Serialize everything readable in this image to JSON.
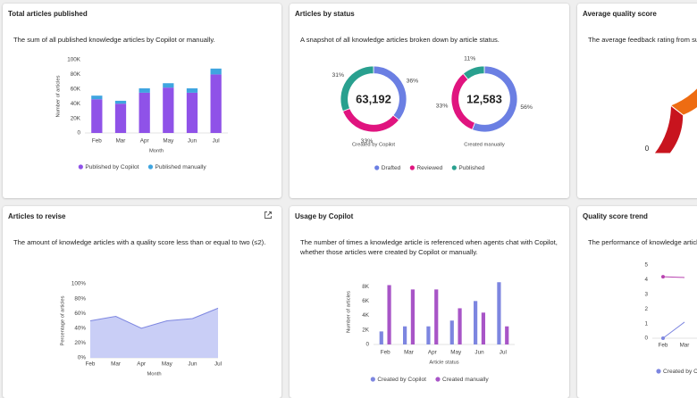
{
  "cards": [
    {
      "title": "Total articles published",
      "description": "The sum of all published knowledge articles by Copilot or manually.",
      "chart": {
        "type": "stacked-bar",
        "x_label": "Month",
        "y_label": "Number of articles",
        "categories": [
          "Feb",
          "Mar",
          "Apr",
          "May",
          "Jun",
          "Jul"
        ],
        "ylim": [
          0,
          100000
        ],
        "yticks": [
          0,
          {
            "value": 20000,
            "label": "20K"
          },
          {
            "value": 40000,
            "label": "40K"
          },
          {
            "value": 60000,
            "label": "60K"
          },
          {
            "value": 80000,
            "label": "80K"
          },
          {
            "value": 100000,
            "label": "100K"
          }
        ],
        "series": [
          {
            "name": "Published by Copilot",
            "color": "#8f52e8",
            "values": [
              46000,
              40000,
              55000,
              62000,
              55000,
              80000
            ]
          },
          {
            "name": "Published manually",
            "color": "#3fa5e0",
            "values": [
              5000,
              4000,
              6000,
              6000,
              6000,
              8000
            ]
          }
        ]
      }
    },
    {
      "title": "Articles by status",
      "description": "A snapshot of all knowledge articles broken down by article status.",
      "chart": {
        "type": "donut",
        "categories": [
          "Drafted",
          "Reviewed",
          "Published"
        ],
        "colors": [
          "#6b7fe3",
          "#e0147f",
          "#29a08f"
        ],
        "donuts": [
          {
            "name": "Created by Copilot",
            "total": {
              "value": 63192,
              "label": "63,192"
            },
            "values": [
              36,
              33,
              31
            ],
            "value_labels": [
              "36%",
              "33%",
              "31%"
            ]
          },
          {
            "name": "Created manually",
            "total": {
              "value": 12583,
              "label": "12,583"
            },
            "values": [
              56,
              33,
              11
            ],
            "value_labels": [
              "56%",
              "33%",
              "11%"
            ]
          }
        ]
      }
    },
    {
      "title": "Average quality score",
      "description": "The average feedback rating from sup",
      "chart": {
        "type": "gauge",
        "min": 0
      }
    },
    {
      "title": "Articles to revise",
      "description": "The amount of knowledge articles with a quality score less than or equal to two (≤2).",
      "chart": {
        "type": "area",
        "x_label": "Month",
        "y_label": "Percentage of articles",
        "categories": [
          "Feb",
          "Mar",
          "Apr",
          "May",
          "Jun",
          "Jul"
        ],
        "ylim": [
          0,
          100
        ],
        "yticks": [
          {
            "value": 0,
            "label": "0%"
          },
          {
            "value": 20,
            "label": "20%"
          },
          {
            "value": 40,
            "label": "40%"
          },
          {
            "value": 60,
            "label": "60%"
          },
          {
            "value": 80,
            "label": "80%"
          },
          {
            "value": 100,
            "label": "100%"
          }
        ],
        "series": [
          {
            "color": "#7d86e0",
            "values": [
              50,
              56,
              40,
              50,
              53,
              67
            ]
          }
        ]
      }
    },
    {
      "title": "Usage by Copilot",
      "description": "The number of times a knowledge article is referenced when agents chat with Copilot, whether those articles were created by Copilot or manually.",
      "chart": {
        "type": "grouped-bar",
        "x_label": "Article status",
        "y_label": "Number of articles",
        "categories": [
          "Feb",
          "Mar",
          "Apr",
          "May",
          "Jun",
          "Jul"
        ],
        "ylim": [
          0,
          9000
        ],
        "yticks": [
          0,
          {
            "value": 2000,
            "label": "2K"
          },
          {
            "value": 4000,
            "label": "4K"
          },
          {
            "value": 6000,
            "label": "6K"
          },
          {
            "value": 8000,
            "label": "8K"
          }
        ],
        "series": [
          {
            "name": "Created by Copilot",
            "color": "#7d86e0",
            "values": [
              1800,
              2500,
              2500,
              3300,
              6000,
              8600
            ]
          },
          {
            "name": "Created manually",
            "color": "#a855c7",
            "values": [
              8200,
              7600,
              7600,
              5000,
              4400,
              2500
            ]
          }
        ]
      }
    },
    {
      "title": "Quality score trend",
      "description": "The performance of knowledge article",
      "chart": {
        "type": "line",
        "categories": [
          "Feb",
          "Mar"
        ],
        "ylim": [
          0,
          5
        ],
        "yticks": [
          0,
          1,
          2,
          3,
          4,
          5
        ],
        "series": [
          {
            "name": "Created by Co",
            "color": "#7d86e0",
            "values": [
              0,
              1.1
            ]
          },
          {
            "color": "#b843b0",
            "values": [
              4.2,
              4.15
            ]
          }
        ]
      }
    }
  ]
}
